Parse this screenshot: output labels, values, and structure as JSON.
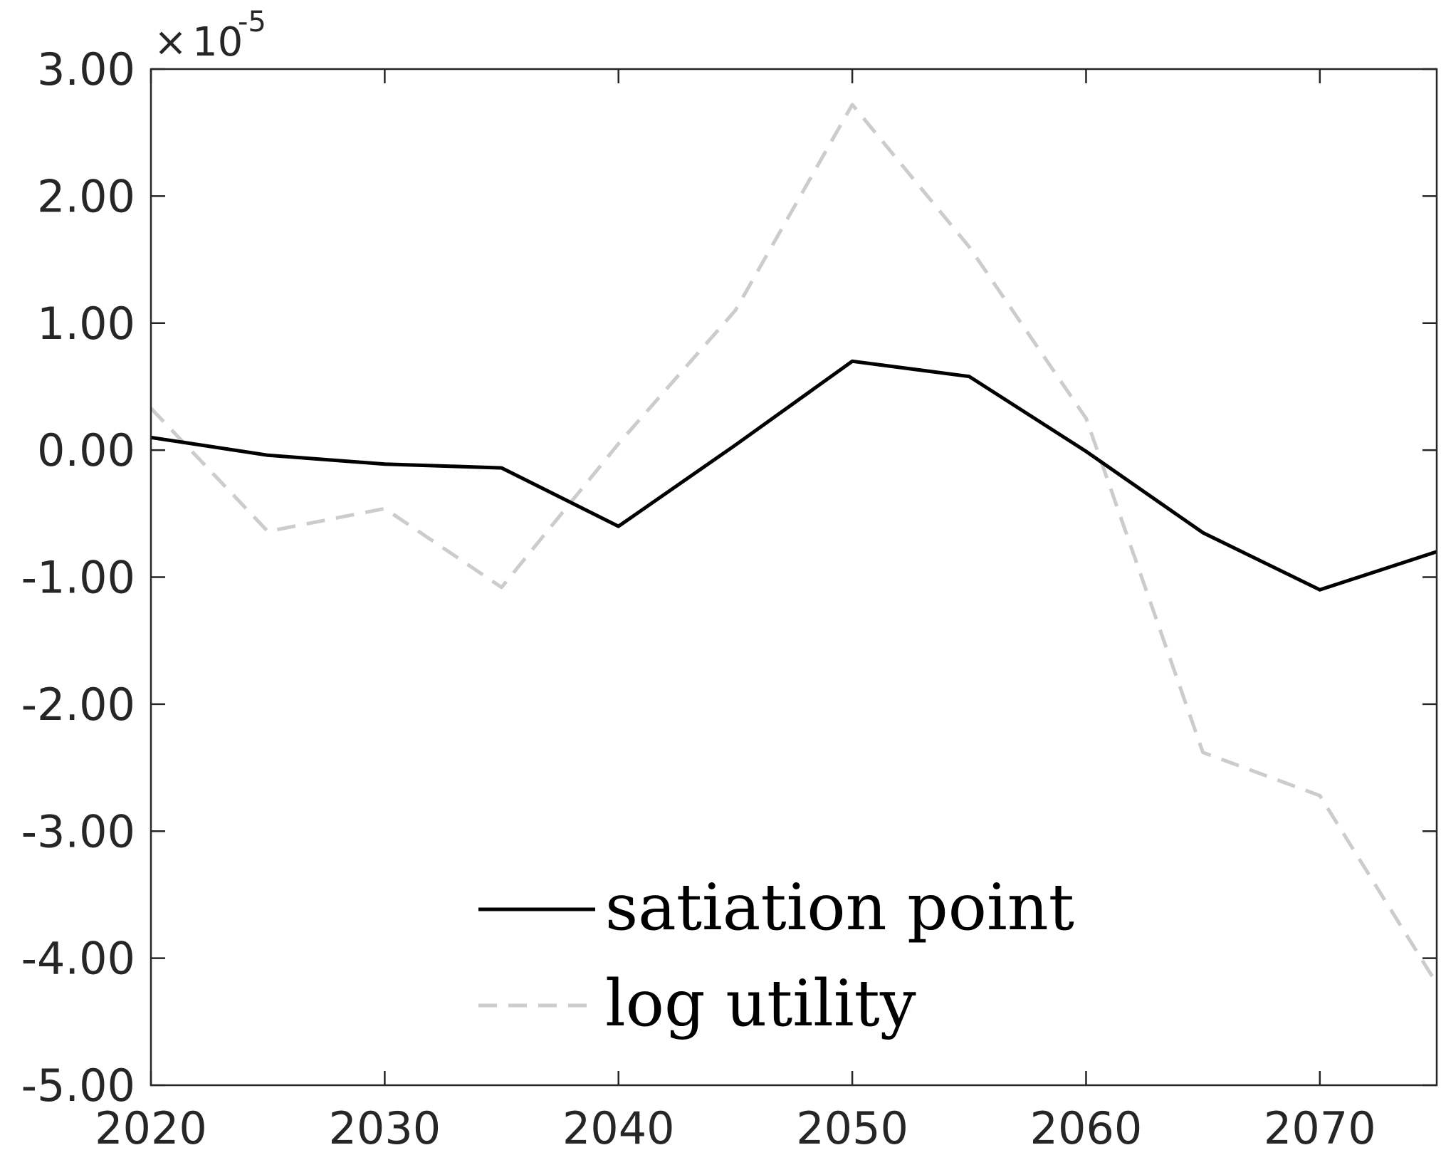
{
  "chart_data": {
    "type": "line",
    "x": [
      2020,
      2025,
      2030,
      2035,
      2040,
      2045,
      2050,
      2055,
      2060,
      2065,
      2070,
      2075
    ],
    "series": [
      {
        "name": "satiation point",
        "color": "#000000",
        "style": "solid",
        "values": [
          0.1,
          -0.04,
          -0.11,
          -0.14,
          -0.6,
          0.04,
          0.7,
          0.58,
          -0.01,
          -0.65,
          -1.1,
          -0.8
        ]
      },
      {
        "name": "log utility",
        "color": "#cccccc",
        "style": "dashed",
        "values": [
          0.33,
          -0.64,
          -0.46,
          -1.08,
          0.05,
          1.1,
          2.72,
          1.6,
          0.25,
          -2.38,
          -2.72,
          -4.2
        ]
      }
    ],
    "x_ticks": [
      "2020",
      "2030",
      "2040",
      "2050",
      "2060",
      "2070"
    ],
    "x_tick_values": [
      2020,
      2030,
      2040,
      2050,
      2060,
      2070
    ],
    "y_ticks": [
      "3.00",
      "2.00",
      "1.00",
      "0.00",
      "-1.00",
      "-2.00",
      "-3.00",
      "-4.00",
      "-5.00"
    ],
    "y_tick_values": [
      3,
      2,
      1,
      0,
      -1,
      -2,
      -3,
      -4,
      -5
    ],
    "xlim": [
      2020,
      2075
    ],
    "ylim": [
      -5,
      3
    ],
    "y_multiplier_base": "10",
    "y_multiplier_exponent": "-5",
    "xlabel": "",
    "ylabel": "",
    "title": "",
    "grid": false,
    "legend_position": "bottom-center"
  }
}
